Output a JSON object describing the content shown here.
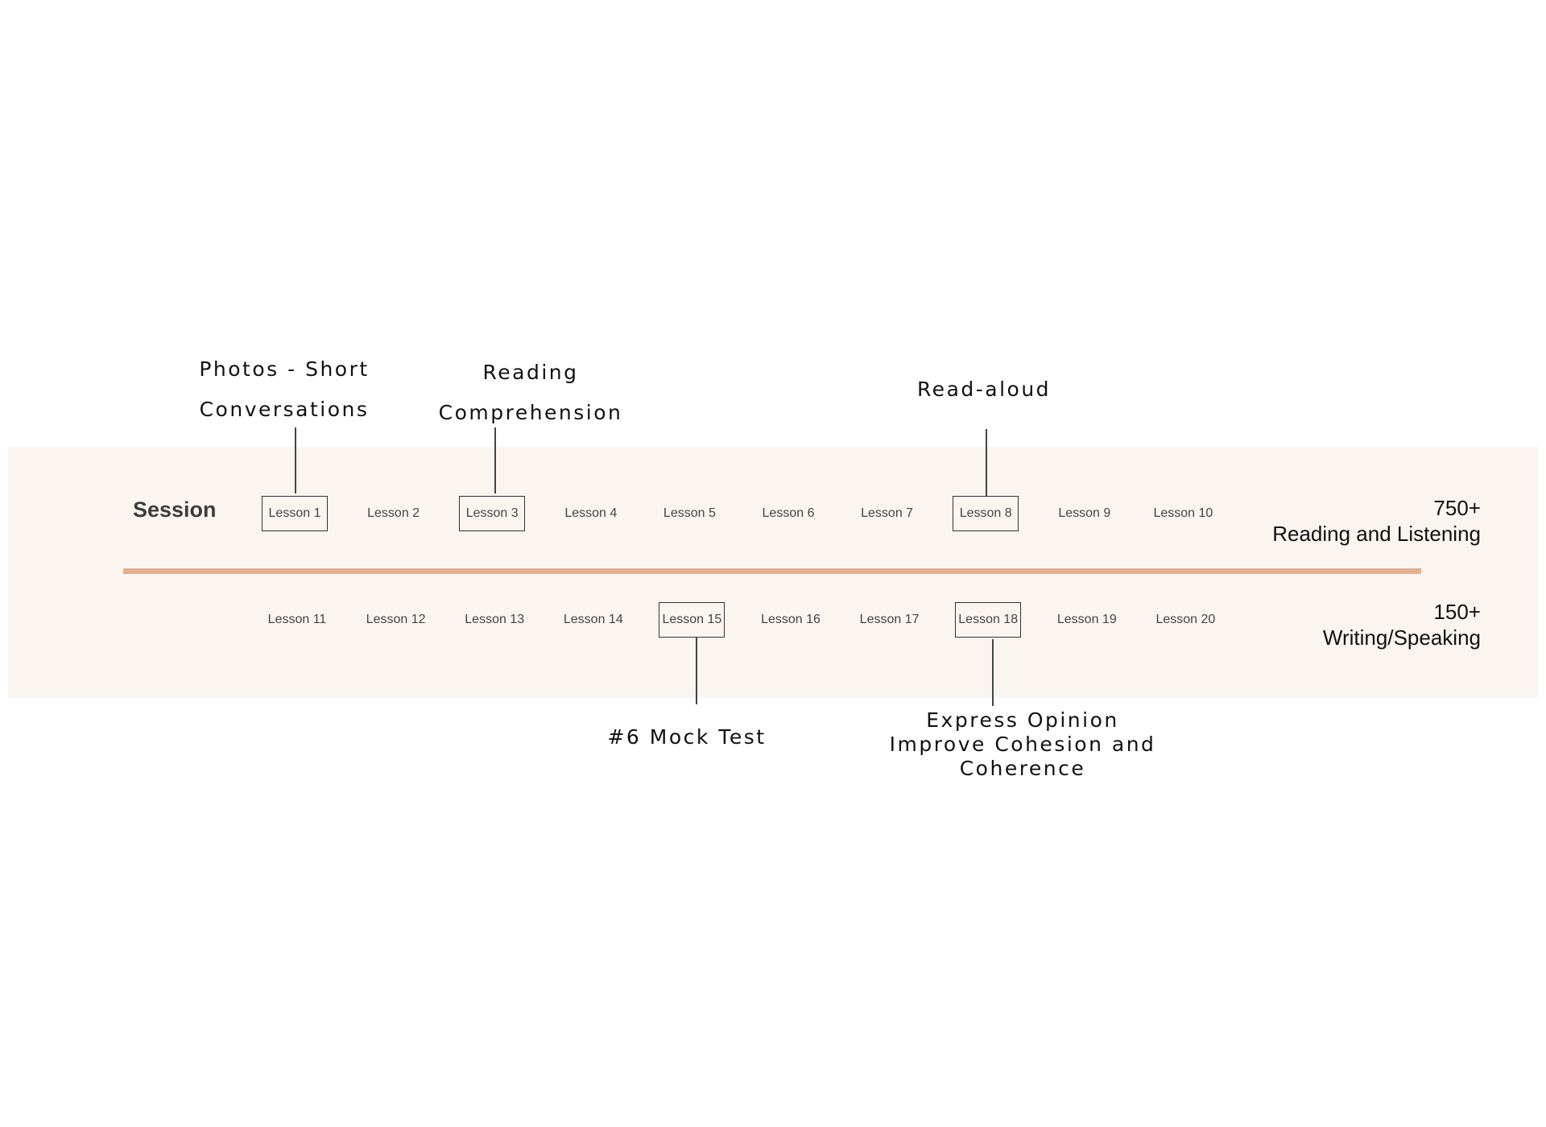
{
  "session_label": "Session",
  "top_row": {
    "lessons": [
      {
        "label": "Lesson 1",
        "boxed": true
      },
      {
        "label": "Lesson 2",
        "boxed": false
      },
      {
        "label": "Lesson 3",
        "boxed": true
      },
      {
        "label": "Lesson 4",
        "boxed": false
      },
      {
        "label": "Lesson 5",
        "boxed": false
      },
      {
        "label": "Lesson 6",
        "boxed": false
      },
      {
        "label": "Lesson 7",
        "boxed": false
      },
      {
        "label": "Lesson 8",
        "boxed": true
      },
      {
        "label": "Lesson 9",
        "boxed": false
      },
      {
        "label": "Lesson 10",
        "boxed": false
      }
    ],
    "score": "750+",
    "category": "Reading and Listening"
  },
  "bottom_row": {
    "lessons": [
      {
        "label": "Lesson 11",
        "boxed": false
      },
      {
        "label": "Lesson 12",
        "boxed": false
      },
      {
        "label": "Lesson 13",
        "boxed": false
      },
      {
        "label": "Lesson 14",
        "boxed": false
      },
      {
        "label": "Lesson 15",
        "boxed": true
      },
      {
        "label": "Lesson 16",
        "boxed": false
      },
      {
        "label": "Lesson 17",
        "boxed": false
      },
      {
        "label": "Lesson 18",
        "boxed": true
      },
      {
        "label": "Lesson 19",
        "boxed": false
      },
      {
        "label": "Lesson 20",
        "boxed": false
      }
    ],
    "score": "150+",
    "category": "Writing/Speaking"
  },
  "callouts": {
    "lesson1": [
      "Photos - Short",
      "Conversations"
    ],
    "lesson3": [
      "Reading",
      "Comprehension"
    ],
    "lesson8": [
      "Read-aloud"
    ],
    "lesson15": [
      "#6 Mock Test"
    ],
    "lesson18": [
      "Express Opinion",
      "Improve Cohesion and",
      "Coherence"
    ]
  },
  "colors": {
    "band": "#fbf5f0",
    "divider": "#e3b08e",
    "text": "#444444"
  }
}
